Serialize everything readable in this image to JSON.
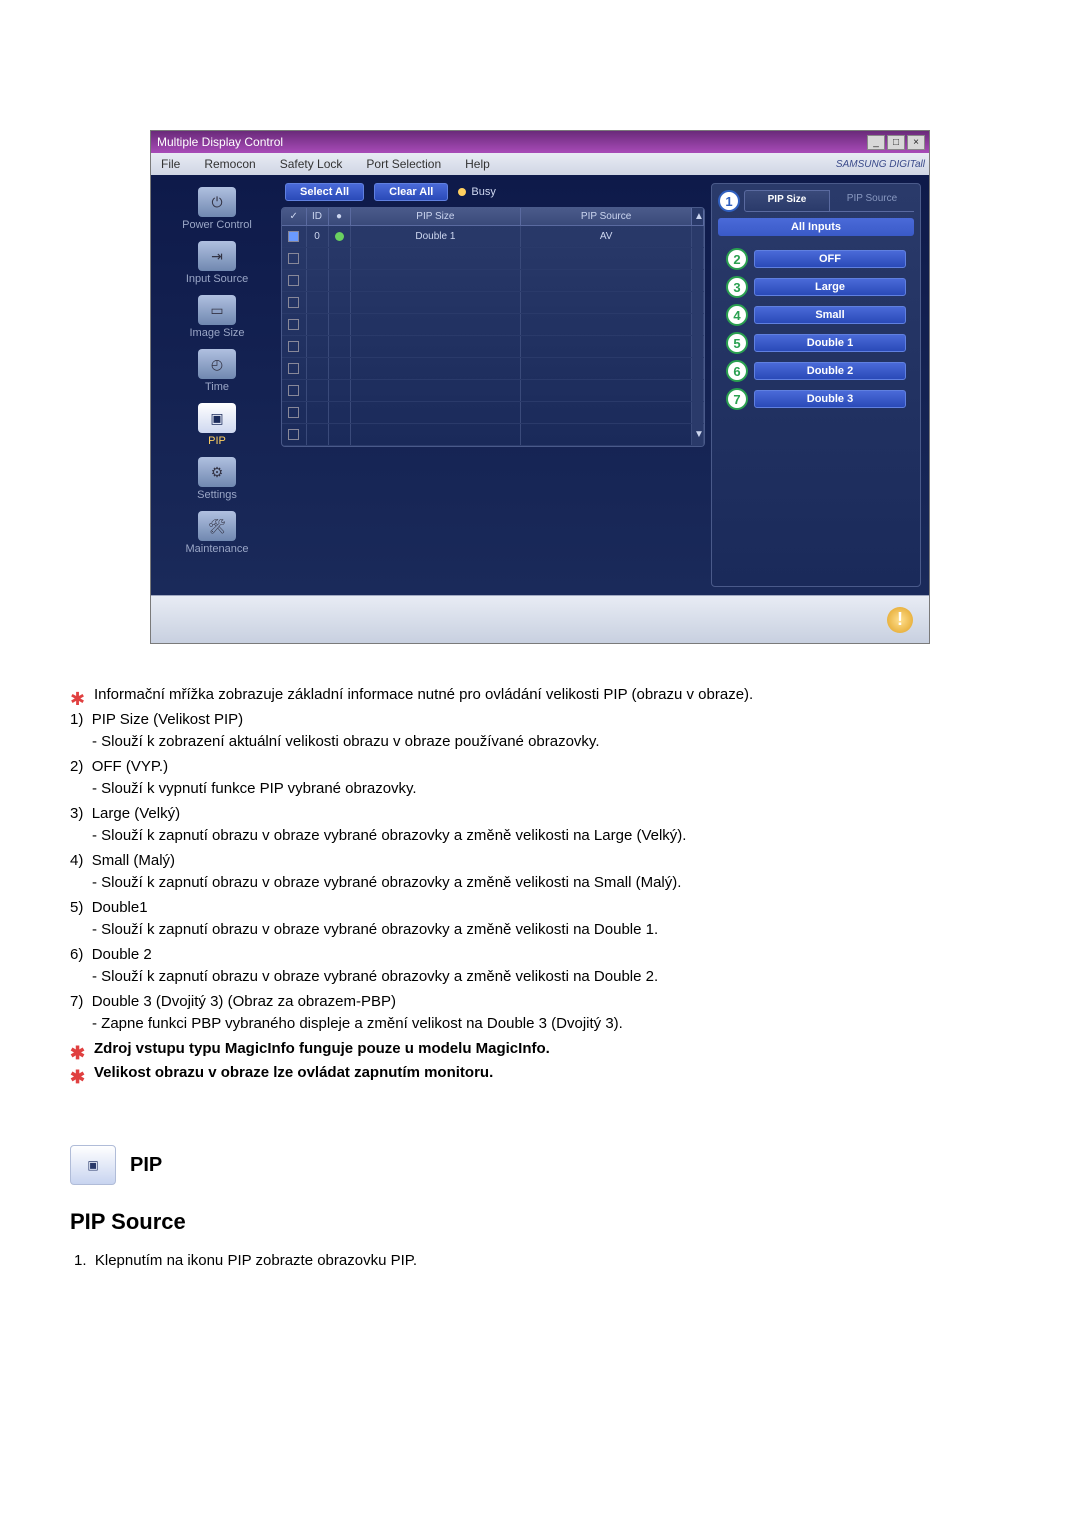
{
  "app": {
    "title": "Multiple Display Control",
    "brand": "SAMSUNG DIGITall",
    "menus": [
      "File",
      "Remocon",
      "Safety Lock",
      "Port Selection",
      "Help"
    ],
    "select_btn": "Select All",
    "clear_btn": "Clear All",
    "busy": "Busy",
    "grid_headers": {
      "chk": "",
      "id": "ID",
      "st": "",
      "pipsize": "PIP Size",
      "pipsource": "PIP Source"
    },
    "row0": {
      "id": "0",
      "pipsize": "Double 1",
      "pipsource": "AV"
    },
    "sidebar": [
      {
        "label": "Power Control"
      },
      {
        "label": "Input Source"
      },
      {
        "label": "Image Size"
      },
      {
        "label": "Time"
      },
      {
        "label": "PIP"
      },
      {
        "label": "Settings"
      },
      {
        "label": "Maintenance"
      }
    ],
    "rpanel": {
      "tab_active": "PIP Size",
      "tab_other": "PIP Source",
      "all_inputs": "All Inputs",
      "opts": [
        "OFF",
        "Large",
        "Small",
        "Double 1",
        "Double 2",
        "Double 3"
      ]
    }
  },
  "doc": {
    "intro": "Informační mřížka zobrazuje základní informace nutné pro ovládání velikosti PIP (obrazu v obraze).",
    "items": [
      {
        "n": "1)",
        "title": "PIP Size (Velikost PIP)",
        "sub": "- Slouží k zobrazení aktuální velikosti obrazu v obraze používané obrazovky."
      },
      {
        "n": "2)",
        "title": "OFF (VYP.)",
        "sub": "- Slouží k vypnutí funkce PIP vybrané obrazovky."
      },
      {
        "n": "3)",
        "title": "Large (Velký)",
        "sub": "- Slouží k zapnutí obrazu v obraze vybrané obrazovky a změně velikosti na Large (Velký)."
      },
      {
        "n": "4)",
        "title": "Small (Malý)",
        "sub": "- Slouží k zapnutí obrazu v obraze vybrané obrazovky a změně velikosti na Small (Malý)."
      },
      {
        "n": "5)",
        "title": "Double1",
        "sub": "- Slouží k zapnutí obrazu v obraze vybrané obrazovky a změně velikosti na Double 1."
      },
      {
        "n": "6)",
        "title": "Double 2",
        "sub": "- Slouží k zapnutí obrazu v obraze vybrané obrazovky a změně velikosti na Double 2."
      },
      {
        "n": "7)",
        "title": "Double 3 (Dvojitý 3) (Obraz za obrazem-PBP)",
        "sub": "- Zapne funkci PBP vybraného displeje a změní velikost na Double 3 (Dvojitý 3)."
      }
    ],
    "note1": "Zdroj vstupu typu MagicInfo funguje pouze u modelu MagicInfo.",
    "note2": "Velikost obrazu v obraze lze ovládat zapnutím monitoru.",
    "section_title": "PIP",
    "subtitle": "PIP Source",
    "step1": "Klepnutím na ikonu PIP zobrazte obrazovku PIP."
  }
}
